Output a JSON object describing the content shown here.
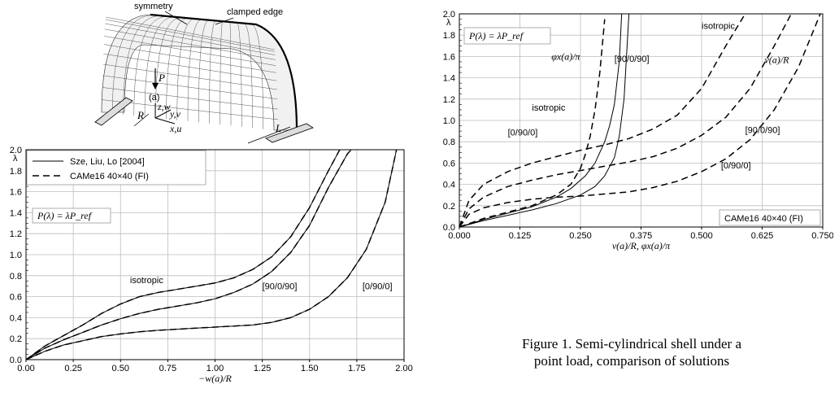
{
  "shell": {
    "symmetry": "symmetry",
    "clamped_edge": "clamped edge",
    "load": "P",
    "point": "(a)",
    "radius": "R",
    "length": "L",
    "axis_z": "z,w",
    "axis_y": "y,v",
    "axis_x": "x,u"
  },
  "chart_data": [
    {
      "type": "line",
      "ylabel": "λ",
      "xlabel": "−w(a)/R",
      "xlim": [
        0,
        2
      ],
      "ylim": [
        0,
        2
      ],
      "xticks": [
        "0.00",
        "0.25",
        "0.50",
        "0.75",
        "1.00",
        "1.25",
        "1.50",
        "1.75",
        "2.00"
      ],
      "yticks": [
        "0.0",
        "0.2",
        "0.4",
        "0.6",
        "0.8",
        "1.0",
        "1.2",
        "1.4",
        "1.6",
        "1.8",
        "2.0"
      ],
      "legend": [
        {
          "label": "Sze, Liu, Lo [2004]",
          "style": "solid"
        },
        {
          "label": "CAMe16 40×40 (FI)",
          "style": "dashed"
        }
      ],
      "formula": "P(λ) = λP_ref",
      "series": [
        {
          "name": "isotropic",
          "x": [
            0,
            0.1,
            0.2,
            0.3,
            0.4,
            0.5,
            0.6,
            0.7,
            0.8,
            0.9,
            1.0,
            1.1,
            1.2,
            1.3,
            1.4,
            1.5,
            1.6,
            1.66
          ],
          "y": [
            0,
            0.13,
            0.23,
            0.33,
            0.44,
            0.53,
            0.6,
            0.64,
            0.67,
            0.7,
            0.73,
            0.78,
            0.86,
            0.98,
            1.17,
            1.45,
            1.8,
            2.0
          ]
        },
        {
          "name": "[90/0/90]",
          "x": [
            0,
            0.1,
            0.2,
            0.3,
            0.4,
            0.5,
            0.6,
            0.7,
            0.8,
            0.9,
            1.0,
            1.1,
            1.2,
            1.3,
            1.4,
            1.5,
            1.6,
            1.7,
            1.72
          ],
          "y": [
            0,
            0.11,
            0.19,
            0.26,
            0.33,
            0.39,
            0.44,
            0.48,
            0.51,
            0.54,
            0.58,
            0.64,
            0.72,
            0.84,
            1.02,
            1.28,
            1.64,
            1.96,
            2.0
          ]
        },
        {
          "name": "[0/90/0]",
          "x": [
            0,
            0.1,
            0.2,
            0.3,
            0.4,
            0.5,
            0.6,
            0.7,
            0.8,
            0.9,
            1.0,
            1.1,
            1.2,
            1.3,
            1.4,
            1.5,
            1.6,
            1.7,
            1.8,
            1.9,
            1.96
          ],
          "y": [
            0,
            0.08,
            0.14,
            0.18,
            0.22,
            0.245,
            0.265,
            0.28,
            0.29,
            0.3,
            0.31,
            0.32,
            0.33,
            0.355,
            0.4,
            0.48,
            0.6,
            0.78,
            1.05,
            1.5,
            2.0
          ]
        }
      ],
      "annotations": [
        "isotropic",
        "[90/0/90]",
        "[0/90/0]"
      ]
    },
    {
      "type": "line",
      "ylabel": "λ",
      "xlabel": "v(a)/R,  φx(a)/π",
      "xlim": [
        0,
        0.75
      ],
      "ylim": [
        0,
        2
      ],
      "xticks": [
        "0.000",
        "0.125",
        "0.250",
        "0.375",
        "0.500",
        "0.625",
        "0.750"
      ],
      "yticks": [
        "0.0",
        "0.2",
        "0.4",
        "0.6",
        "0.8",
        "1.0",
        "1.2",
        "1.4",
        "1.6",
        "1.8",
        "2.0"
      ],
      "formula": "P(λ) = λP_ref",
      "legend_box": "CAMe16 40×40 (FI)",
      "series": [
        {
          "name": "v(a)/R isotropic",
          "style": "dashed",
          "x": [
            0,
            0.02,
            0.05,
            0.1,
            0.15,
            0.2,
            0.25,
            0.3,
            0.35,
            0.4,
            0.45,
            0.5,
            0.55,
            0.59
          ],
          "y": [
            0,
            0.25,
            0.4,
            0.52,
            0.6,
            0.66,
            0.72,
            0.77,
            0.83,
            0.92,
            1.05,
            1.3,
            1.7,
            2.0
          ]
        },
        {
          "name": "v(a)/R [90/0/90]",
          "style": "dashed",
          "x": [
            0,
            0.02,
            0.05,
            0.1,
            0.15,
            0.2,
            0.25,
            0.3,
            0.35,
            0.4,
            0.45,
            0.5,
            0.55,
            0.6,
            0.65,
            0.685
          ],
          "y": [
            0,
            0.17,
            0.28,
            0.38,
            0.44,
            0.49,
            0.53,
            0.57,
            0.61,
            0.66,
            0.74,
            0.86,
            1.03,
            1.3,
            1.7,
            2.0
          ]
        },
        {
          "name": "v(a)/R [0/90/0]",
          "style": "dashed",
          "x": [
            0,
            0.02,
            0.05,
            0.1,
            0.15,
            0.2,
            0.25,
            0.3,
            0.35,
            0.4,
            0.45,
            0.5,
            0.55,
            0.6,
            0.65,
            0.7,
            0.745
          ],
          "y": [
            0,
            0.12,
            0.18,
            0.23,
            0.26,
            0.28,
            0.29,
            0.31,
            0.33,
            0.37,
            0.43,
            0.52,
            0.64,
            0.82,
            1.1,
            1.5,
            2.0
          ]
        },
        {
          "name": "φx(a)/π isotropic",
          "style": "solid",
          "x": [
            0,
            0.05,
            0.1,
            0.15,
            0.2,
            0.23,
            0.26,
            0.28,
            0.3,
            0.31,
            0.32,
            0.33,
            0.335
          ],
          "y": [
            0,
            0.07,
            0.13,
            0.19,
            0.28,
            0.36,
            0.48,
            0.6,
            0.8,
            0.95,
            1.15,
            1.55,
            2.0
          ]
        },
        {
          "name": "φx(a)/π [90/0/90]",
          "style": "solid",
          "x": [
            0,
            0.05,
            0.1,
            0.15,
            0.2,
            0.25,
            0.28,
            0.3,
            0.32,
            0.33,
            0.34,
            0.35
          ],
          "y": [
            0,
            0.06,
            0.11,
            0.16,
            0.22,
            0.3,
            0.38,
            0.48,
            0.65,
            0.85,
            1.2,
            2.0
          ]
        },
        {
          "name": "φx(a)/π [0/90/0]",
          "style": "dashed",
          "x": [
            0,
            0.05,
            0.1,
            0.15,
            0.2,
            0.23,
            0.25,
            0.26,
            0.27,
            0.28,
            0.29,
            0.3
          ],
          "y": [
            0,
            0.08,
            0.14,
            0.2,
            0.3,
            0.4,
            0.55,
            0.68,
            0.85,
            1.1,
            1.45,
            1.95
          ]
        }
      ],
      "annotations": [
        "isotropic",
        "φx(a)/π",
        "[90/0/90]",
        "isotropic",
        "[0/90/0]",
        "v(a)/R",
        "[90/0/90]",
        "[0/90/0]"
      ]
    }
  ],
  "caption": "Figure 1. Semi-cylindrical shell under a point load, comparison of solutions"
}
